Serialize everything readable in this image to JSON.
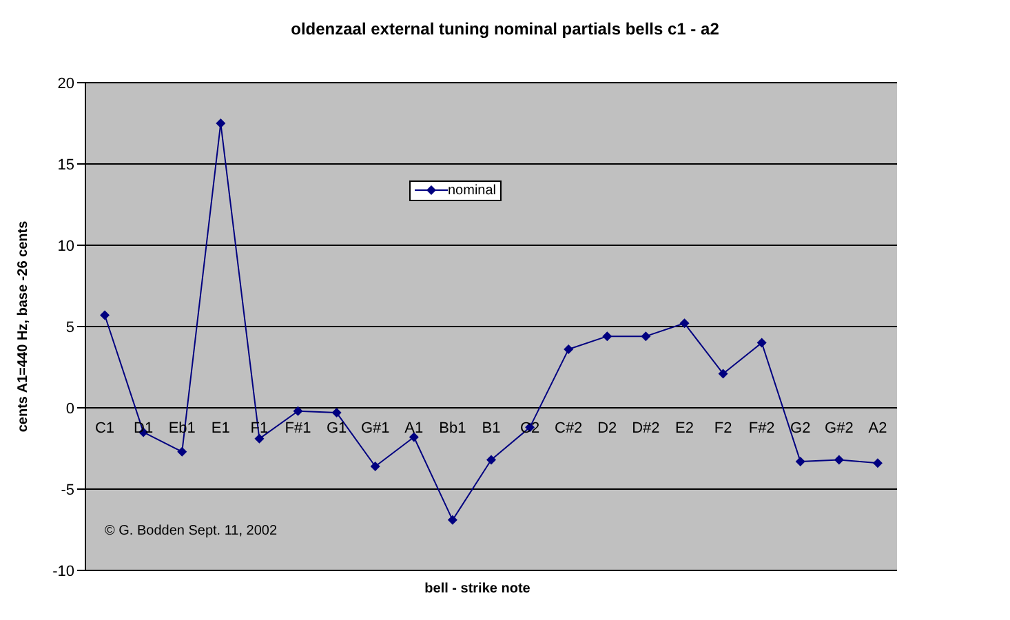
{
  "chart_data": {
    "type": "line",
    "title": "oldenzaal external tuning nominal partials bells c1 - a2",
    "xlabel": "bell - strike note",
    "ylabel": "cents A1=440 Hz, base -26 cents",
    "categories": [
      "C1",
      "D1",
      "Eb1",
      "E1",
      "F1",
      "F#1",
      "G1",
      "G#1",
      "A1",
      "Bb1",
      "B1",
      "C2",
      "C#2",
      "D2",
      "D#2",
      "E2",
      "F2",
      "F#2",
      "G2",
      "G#2",
      "A2"
    ],
    "series": [
      {
        "name": "nominal",
        "color": "#000080",
        "values": [
          5.7,
          -1.5,
          -2.7,
          17.5,
          -1.9,
          -0.2,
          -0.3,
          -3.6,
          -1.8,
          -6.9,
          -3.2,
          -1.2,
          3.6,
          4.4,
          4.4,
          5.2,
          2.1,
          4.0,
          -3.3,
          -3.2,
          -3.4
        ]
      }
    ],
    "ylim": [
      -10,
      20
    ],
    "yticks": [
      -10,
      -5,
      0,
      5,
      10,
      15,
      20
    ],
    "grid": "y",
    "legend": "top",
    "marker": "diamond",
    "line_style": "solid",
    "annotations": [
      "© G. Bodden Sept. 11, 2002"
    ]
  }
}
